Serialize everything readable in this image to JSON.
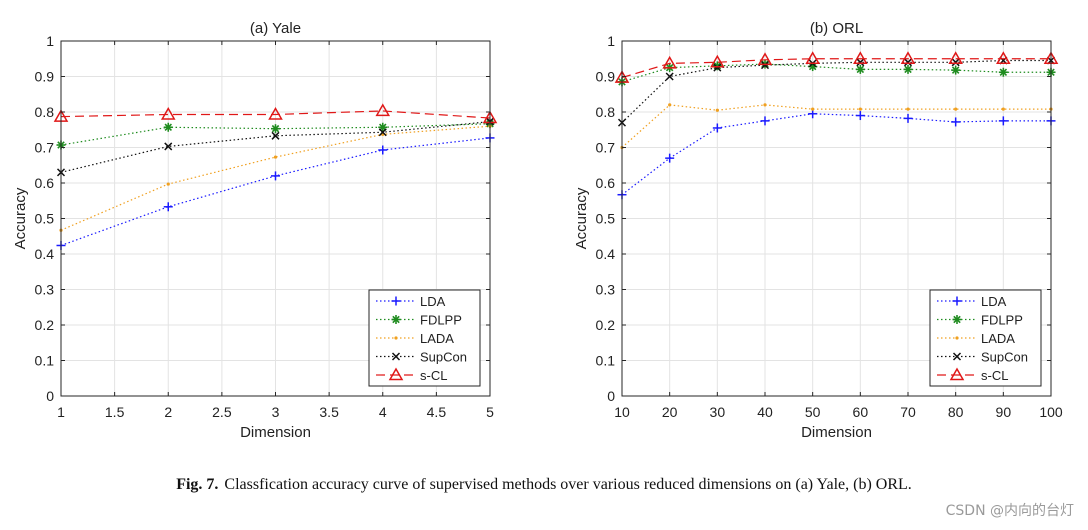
{
  "caption": {
    "label": "Fig. 7.",
    "text": "Classfication accuracy curve of supervised methods over various reduced dimensions on (a) Yale, (b) ORL."
  },
  "watermark": "CSDN @内向的台灯",
  "chart_data": [
    {
      "type": "line",
      "title": "(a) Yale",
      "xlabel": "Dimension",
      "ylabel": "Accuracy",
      "xlim": [
        1,
        5
      ],
      "ylim": [
        0,
        1
      ],
      "xticks": [
        1,
        1.5,
        2,
        2.5,
        3,
        3.5,
        4,
        4.5,
        5
      ],
      "xtick_labels": [
        "1",
        "1.5",
        "2",
        "2.5",
        "3",
        "3.5",
        "4",
        "4.5",
        "5"
      ],
      "yticks": [
        0,
        0.1,
        0.2,
        0.3,
        0.4,
        0.5,
        0.6,
        0.7,
        0.8,
        0.9,
        1
      ],
      "ytick_labels": [
        "0",
        "0.1",
        "0.2",
        "0.3",
        "0.4",
        "0.5",
        "0.6",
        "0.7",
        "0.8",
        "0.9",
        "1"
      ],
      "grid": true,
      "legend_position": "bottom-right",
      "x": [
        1,
        2,
        3,
        4,
        5
      ],
      "series": [
        {
          "name": "LDA",
          "values": [
            0.424,
            0.533,
            0.62,
            0.693,
            0.727
          ],
          "color": "#1a1aff",
          "marker": "plus",
          "dash": "1.5,2.5"
        },
        {
          "name": "FDLPP",
          "values": [
            0.707,
            0.757,
            0.753,
            0.757,
            0.767
          ],
          "color": "#1f8c1f",
          "marker": "star",
          "dash": "1.5,2.5"
        },
        {
          "name": "LADA",
          "values": [
            0.467,
            0.597,
            0.673,
            0.737,
            0.76
          ],
          "color": "#f0a020",
          "marker": "dot",
          "dash": "1.5,2.5"
        },
        {
          "name": "SupCon",
          "values": [
            0.63,
            0.703,
            0.733,
            0.743,
            0.773
          ],
          "color": "#111111",
          "marker": "x",
          "dash": "1.5,2.5"
        },
        {
          "name": "s-CL",
          "values": [
            0.787,
            0.793,
            0.793,
            0.803,
            0.783
          ],
          "color": "#e01818",
          "marker": "triangle",
          "dash": "9,5"
        }
      ]
    },
    {
      "type": "line",
      "title": "(b) ORL",
      "xlabel": "Dimension",
      "ylabel": "Accuracy",
      "xlim": [
        10,
        100
      ],
      "ylim": [
        0,
        1
      ],
      "xticks": [
        10,
        20,
        30,
        40,
        50,
        60,
        70,
        80,
        90,
        100
      ],
      "xtick_labels": [
        "10",
        "20",
        "30",
        "40",
        "50",
        "60",
        "70",
        "80",
        "90",
        "100"
      ],
      "yticks": [
        0,
        0.1,
        0.2,
        0.3,
        0.4,
        0.5,
        0.6,
        0.7,
        0.8,
        0.9,
        1
      ],
      "ytick_labels": [
        "0",
        "0.1",
        "0.2",
        "0.3",
        "0.4",
        "0.5",
        "0.6",
        "0.7",
        "0.8",
        "0.9",
        "1"
      ],
      "grid": true,
      "legend_position": "bottom-right",
      "x": [
        10,
        20,
        30,
        40,
        50,
        60,
        70,
        80,
        90,
        100
      ],
      "series": [
        {
          "name": "LDA",
          "values": [
            0.567,
            0.67,
            0.755,
            0.775,
            0.795,
            0.79,
            0.782,
            0.772,
            0.775,
            0.775
          ],
          "color": "#1a1aff",
          "marker": "plus",
          "dash": "1.5,2.5"
        },
        {
          "name": "FDLPP",
          "values": [
            0.885,
            0.925,
            0.93,
            0.935,
            0.928,
            0.92,
            0.92,
            0.918,
            0.912,
            0.912
          ],
          "color": "#1f8c1f",
          "marker": "star",
          "dash": "1.5,2.5"
        },
        {
          "name": "LADA",
          "values": [
            0.7,
            0.82,
            0.805,
            0.82,
            0.808,
            0.808,
            0.808,
            0.808,
            0.808,
            0.808
          ],
          "color": "#f0a020",
          "marker": "dot",
          "dash": "1.5,2.5"
        },
        {
          "name": "SupCon",
          "values": [
            0.77,
            0.9,
            0.925,
            0.932,
            0.937,
            0.94,
            0.94,
            0.94,
            0.945,
            0.945
          ],
          "color": "#111111",
          "marker": "x",
          "dash": "1.5,2.5"
        },
        {
          "name": "s-CL",
          "values": [
            0.897,
            0.937,
            0.94,
            0.947,
            0.95,
            0.95,
            0.95,
            0.95,
            0.95,
            0.95
          ],
          "color": "#e01818",
          "marker": "triangle",
          "dash": "9,5"
        }
      ]
    }
  ]
}
